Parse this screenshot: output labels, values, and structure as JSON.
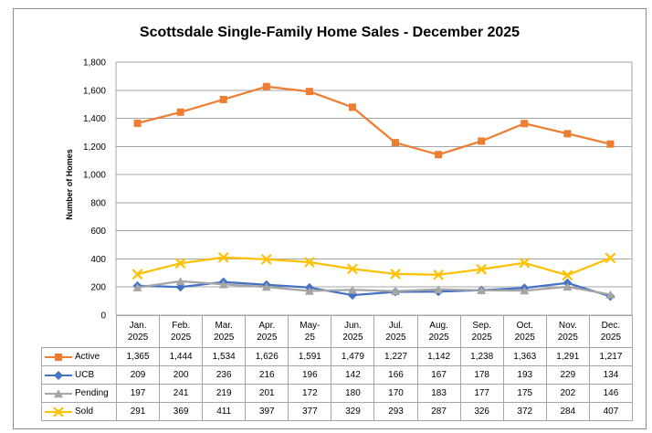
{
  "title": "Scottsdale Single-Family Home Sales - December 2025",
  "chart_data": {
    "type": "line",
    "title": "Scottsdale Single-Family Home Sales - December 2025",
    "xlabel": "",
    "ylabel": "Number of Homes",
    "ylim": [
      0,
      1800
    ],
    "ytick_step": 200,
    "y_tick_labels": [
      "0",
      "200",
      "400",
      "600",
      "800",
      "1,000",
      "1,200",
      "1,400",
      "1,600",
      "1,800"
    ],
    "grid": true,
    "legend_position": "data-table-left",
    "categories": [
      [
        "Jan.",
        "2025"
      ],
      [
        "Feb.",
        "2025"
      ],
      [
        "Mar.",
        "2025"
      ],
      [
        "Apr.",
        "2025"
      ],
      [
        "May-",
        "25"
      ],
      [
        "Jun.",
        "2025"
      ],
      [
        "Jul.",
        "2025"
      ],
      [
        "Aug.",
        "2025"
      ],
      [
        "Sep.",
        "2025"
      ],
      [
        "Oct.",
        "2025"
      ],
      [
        "Nov.",
        "2025"
      ],
      [
        "Dec.",
        "2025"
      ]
    ],
    "series": [
      {
        "name": "Active",
        "color": "#ED7D31",
        "marker": "square",
        "values": [
          1365,
          1444,
          1534,
          1626,
          1591,
          1479,
          1227,
          1142,
          1238,
          1363,
          1291,
          1217
        ],
        "display": [
          "1,365",
          "1,444",
          "1,534",
          "1,626",
          "1,591",
          "1,479",
          "1,227",
          "1,142",
          "1,238",
          "1,363",
          "1,291",
          "1,217"
        ]
      },
      {
        "name": "UCB",
        "color": "#4472C4",
        "marker": "diamond",
        "values": [
          209,
          200,
          236,
          216,
          196,
          142,
          166,
          167,
          178,
          193,
          229,
          134
        ],
        "display": [
          "209",
          "200",
          "236",
          "216",
          "196",
          "142",
          "166",
          "167",
          "178",
          "193",
          "229",
          "134"
        ]
      },
      {
        "name": "Pending",
        "color": "#A5A5A5",
        "marker": "triangle",
        "values": [
          197,
          241,
          219,
          201,
          172,
          180,
          170,
          183,
          177,
          175,
          202,
          146
        ],
        "display": [
          "197",
          "241",
          "219",
          "201",
          "172",
          "180",
          "170",
          "183",
          "177",
          "175",
          "202",
          "146"
        ]
      },
      {
        "name": "Sold",
        "color": "#FFC000",
        "marker": "x",
        "values": [
          291,
          369,
          411,
          397,
          377,
          329,
          293,
          287,
          326,
          372,
          284,
          407
        ],
        "display": [
          "291",
          "369",
          "411",
          "397",
          "377",
          "329",
          "293",
          "287",
          "326",
          "372",
          "284",
          "407"
        ]
      }
    ],
    "colors": {
      "gridline": "#A6A6A6",
      "axis_line": "#8C8C8C",
      "table_border": "#A6A6A6",
      "frame_border": "#8C8C8C",
      "text": "#000000"
    }
  }
}
